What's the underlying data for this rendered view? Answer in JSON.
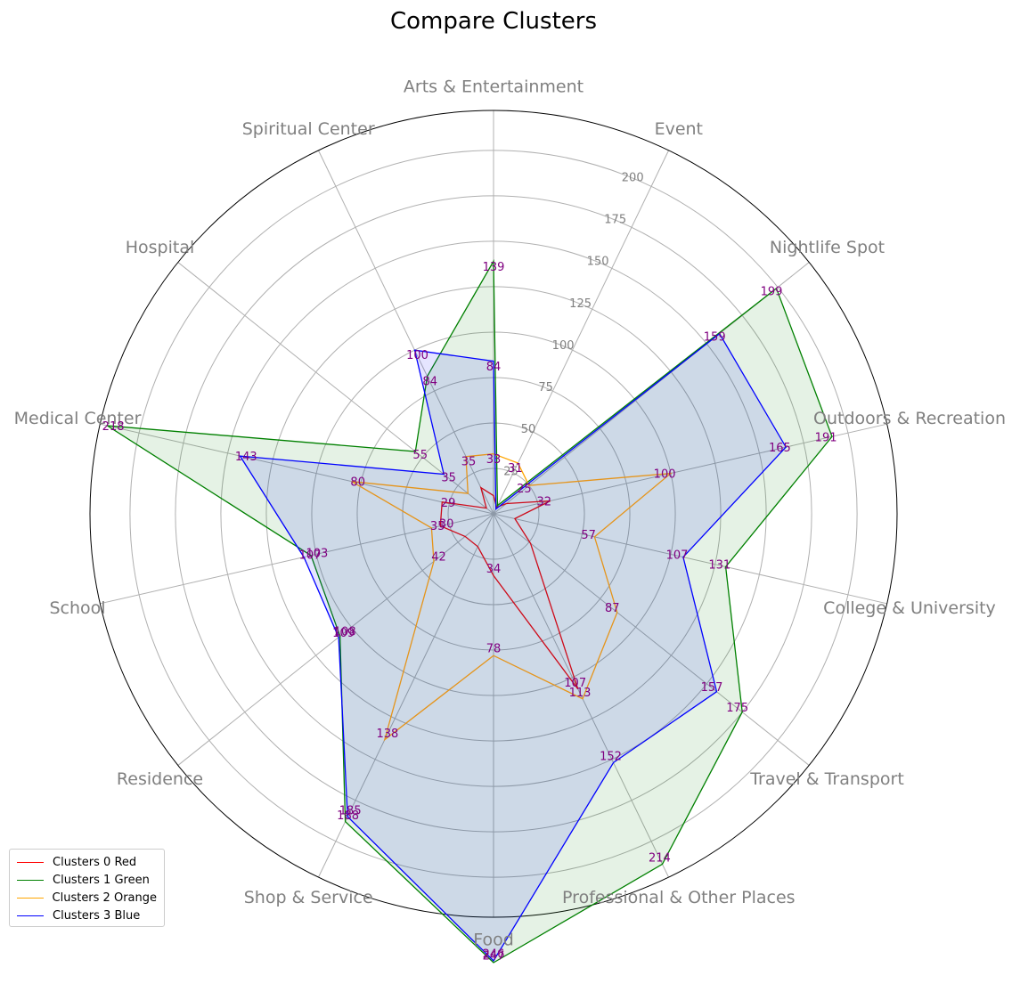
{
  "chart_data": {
    "type": "radar",
    "title": "Compare Clusters",
    "categories": [
      "Arts & Entertainment",
      "Event",
      "Nightlife Spot",
      "Outdoors & Recreation",
      "College & University",
      "Travel & Transport",
      "Professional & Other Places",
      "Food",
      "Shop & Service",
      "Residence",
      "School",
      "Medical Center",
      "Hospital",
      "Spiritual Center"
    ],
    "radial_ticks": [
      25,
      50,
      75,
      100,
      125,
      150,
      175,
      200
    ],
    "radial_tick_labels": [
      "25",
      "50",
      "75",
      "100",
      "125",
      "150",
      "175",
      "200"
    ],
    "rmax": 222,
    "grid": true,
    "legend_position": "lower-left",
    "series": [
      {
        "name": "Clusters 0 Red",
        "color": "#ff0000",
        "fill": false,
        "values": [
          10,
          4,
          9,
          32,
          12,
          26,
          107,
          34,
          20,
          20,
          30,
          29,
          5,
          16
        ],
        "labels": [
          null,
          null,
          null,
          "32",
          null,
          null,
          "107",
          "34",
          null,
          null,
          "30",
          "29",
          null,
          null
        ]
      },
      {
        "name": "Clusters 1 Green",
        "color": "#008000",
        "fill": true,
        "values": [
          139,
          5,
          199,
          191,
          131,
          175,
          214,
          247,
          188,
          108,
          103,
          218,
          55,
          84
        ],
        "labels": [
          "139",
          null,
          "199",
          "191",
          "131",
          "175",
          "214",
          "247",
          "188",
          "108",
          "103",
          "218",
          "55",
          "84"
        ]
      },
      {
        "name": "Clusters 2 Orange",
        "color": "#ffa500",
        "fill": false,
        "values": [
          33,
          31,
          25,
          100,
          57,
          87,
          113,
          78,
          138,
          42,
          35,
          80,
          18,
          35
        ],
        "labels": [
          "33",
          "31",
          "25",
          "100",
          "57",
          "87",
          "113",
          "78",
          "138",
          "42",
          "35",
          "80",
          null,
          "35"
        ]
      },
      {
        "name": "Clusters 3 Blue",
        "color": "#0000ff",
        "fill": true,
        "values": [
          84,
          3,
          159,
          165,
          107,
          157,
          152,
          246,
          185,
          109,
          107,
          143,
          35,
          100
        ],
        "labels": [
          "84",
          null,
          "159",
          "165",
          "107",
          "157",
          "152",
          "246",
          "185",
          "109",
          "107",
          "143",
          "35",
          "100"
        ]
      }
    ]
  }
}
